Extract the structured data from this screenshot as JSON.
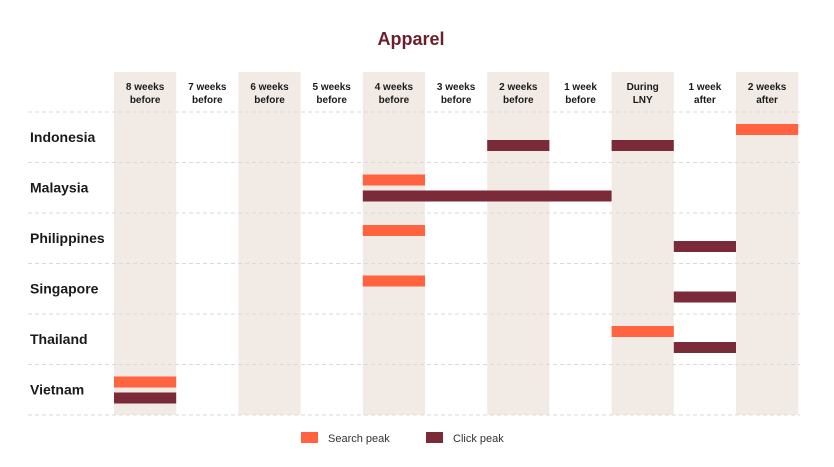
{
  "chart_data": {
    "type": "gantt",
    "title": "Apparel",
    "columns": [
      {
        "line1": "8 weeks",
        "line2": "before",
        "shaded": true
      },
      {
        "line1": "7 weeks",
        "line2": "before",
        "shaded": false
      },
      {
        "line1": "6 weeks",
        "line2": "before",
        "shaded": true
      },
      {
        "line1": "5 weeks",
        "line2": "before",
        "shaded": false
      },
      {
        "line1": "4 weeks",
        "line2": "before",
        "shaded": true
      },
      {
        "line1": "3 weeks",
        "line2": "before",
        "shaded": false
      },
      {
        "line1": "2 weeks",
        "line2": "before",
        "shaded": true
      },
      {
        "line1": "1 week",
        "line2": "before",
        "shaded": false
      },
      {
        "line1": "During",
        "line2": "LNY",
        "shaded": true,
        "highlight": true
      },
      {
        "line1": "1 week",
        "line2": "after",
        "shaded": false
      },
      {
        "line1": "2 weeks",
        "line2": "after",
        "shaded": true
      }
    ],
    "rows": [
      {
        "country": "Indonesia",
        "search_peak": [
          {
            "start": 10,
            "end": 11
          }
        ],
        "click_peak": [
          {
            "start": 6,
            "end": 7
          },
          {
            "start": 8,
            "end": 9
          }
        ]
      },
      {
        "country": "Malaysia",
        "search_peak": [
          {
            "start": 4,
            "end": 5
          }
        ],
        "click_peak": [
          {
            "start": 4,
            "end": 8
          }
        ]
      },
      {
        "country": "Philippines",
        "search_peak": [
          {
            "start": 4,
            "end": 5
          }
        ],
        "click_peak": [
          {
            "start": 9,
            "end": 10
          }
        ]
      },
      {
        "country": "Singapore",
        "search_peak": [
          {
            "start": 4,
            "end": 5
          }
        ],
        "click_peak": [
          {
            "start": 9,
            "end": 10
          }
        ]
      },
      {
        "country": "Thailand",
        "search_peak": [
          {
            "start": 8,
            "end": 9
          }
        ],
        "click_peak": [
          {
            "start": 9,
            "end": 10
          }
        ]
      },
      {
        "country": "Vietnam",
        "search_peak": [
          {
            "start": 0,
            "end": 1
          }
        ],
        "click_peak": [
          {
            "start": 0,
            "end": 1
          }
        ]
      }
    ],
    "legend": [
      {
        "key": "search",
        "label": "Search peak",
        "color": "#ff6340"
      },
      {
        "key": "click",
        "label": "Click peak",
        "color": "#7a2a38"
      }
    ],
    "legend_position": "bottom-center",
    "colors": {
      "title": "#6b1f2e",
      "shade": "#f2ebe5",
      "highlight_text": "#7a2a38",
      "grid": "#d9d9d9"
    }
  }
}
